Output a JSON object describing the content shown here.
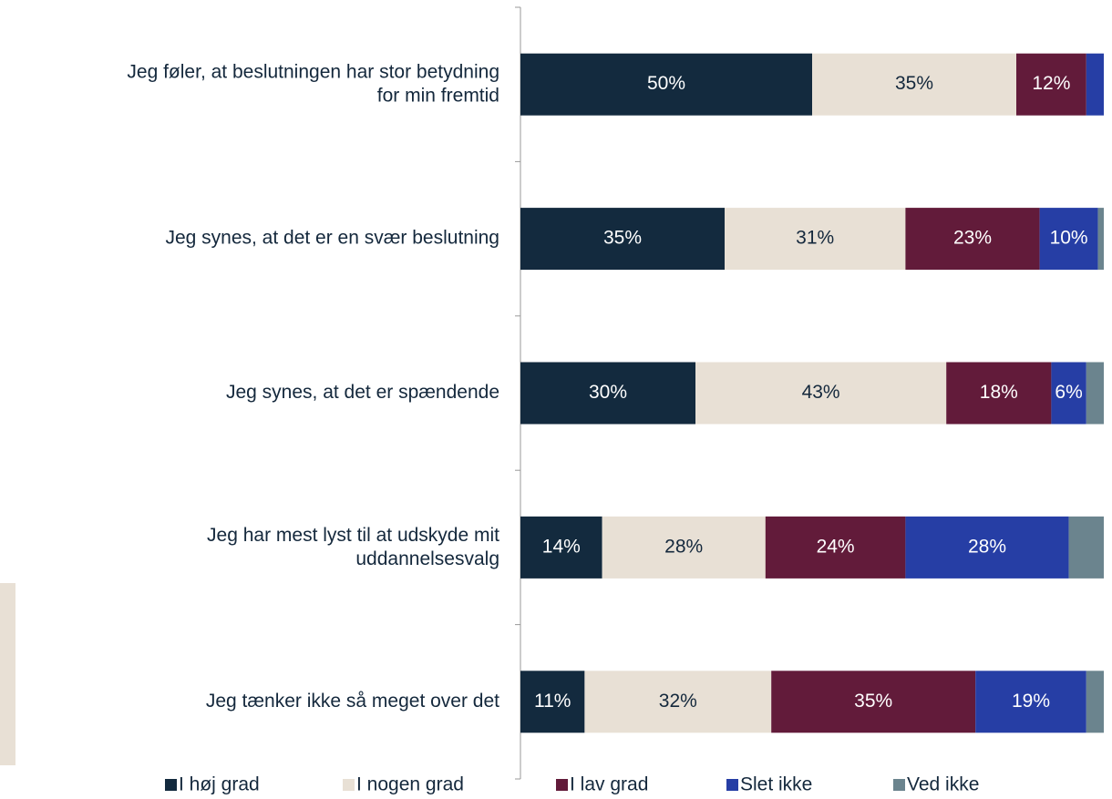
{
  "chart_data": {
    "type": "stacked-barh",
    "categories": [
      "Jeg føler, at beslutningen har stor betydning\nfor min fremtid",
      "Jeg synes, at det er en svær beslutning",
      "Jeg synes, at det er spændende",
      "Jeg har mest lyst til at udskyde mit\nuddannelsesvalg",
      "Jeg tænker ikke så meget over det"
    ],
    "xlim": [
      0,
      100
    ],
    "legend": "bottom",
    "series": [
      {
        "name": "I høj grad",
        "color": "#132a3e",
        "label_color": "#ffffff",
        "values": [
          50,
          35,
          30,
          14,
          11
        ],
        "value_labels": [
          "50%",
          "35%",
          "30%",
          "14%",
          "11%"
        ]
      },
      {
        "name": "I nogen grad",
        "color": "#e8e0d5",
        "label_color": "#14283c",
        "values": [
          35,
          31,
          43,
          28,
          32
        ],
        "value_labels": [
          "35%",
          "31%",
          "43%",
          "28%",
          "32%"
        ]
      },
      {
        "name": "I lav grad",
        "color": "#621b3a",
        "label_color": "#ffffff",
        "values": [
          12,
          23,
          18,
          24,
          35
        ],
        "value_labels": [
          "12%",
          "23%",
          "18%",
          "24%",
          "35%"
        ]
      },
      {
        "name": "Slet ikke",
        "color": "#263ea5",
        "label_color": "#ffffff",
        "values": [
          3,
          10,
          6,
          28,
          19
        ],
        "value_labels": [
          null,
          "10%",
          "6%",
          "28%",
          "19%"
        ]
      },
      {
        "name": "Ved ikke",
        "color": "#6b848e",
        "label_color": "#ffffff",
        "values": [
          0,
          1,
          3,
          6,
          3
        ],
        "value_labels": [
          null,
          null,
          null,
          null,
          null
        ]
      }
    ]
  }
}
